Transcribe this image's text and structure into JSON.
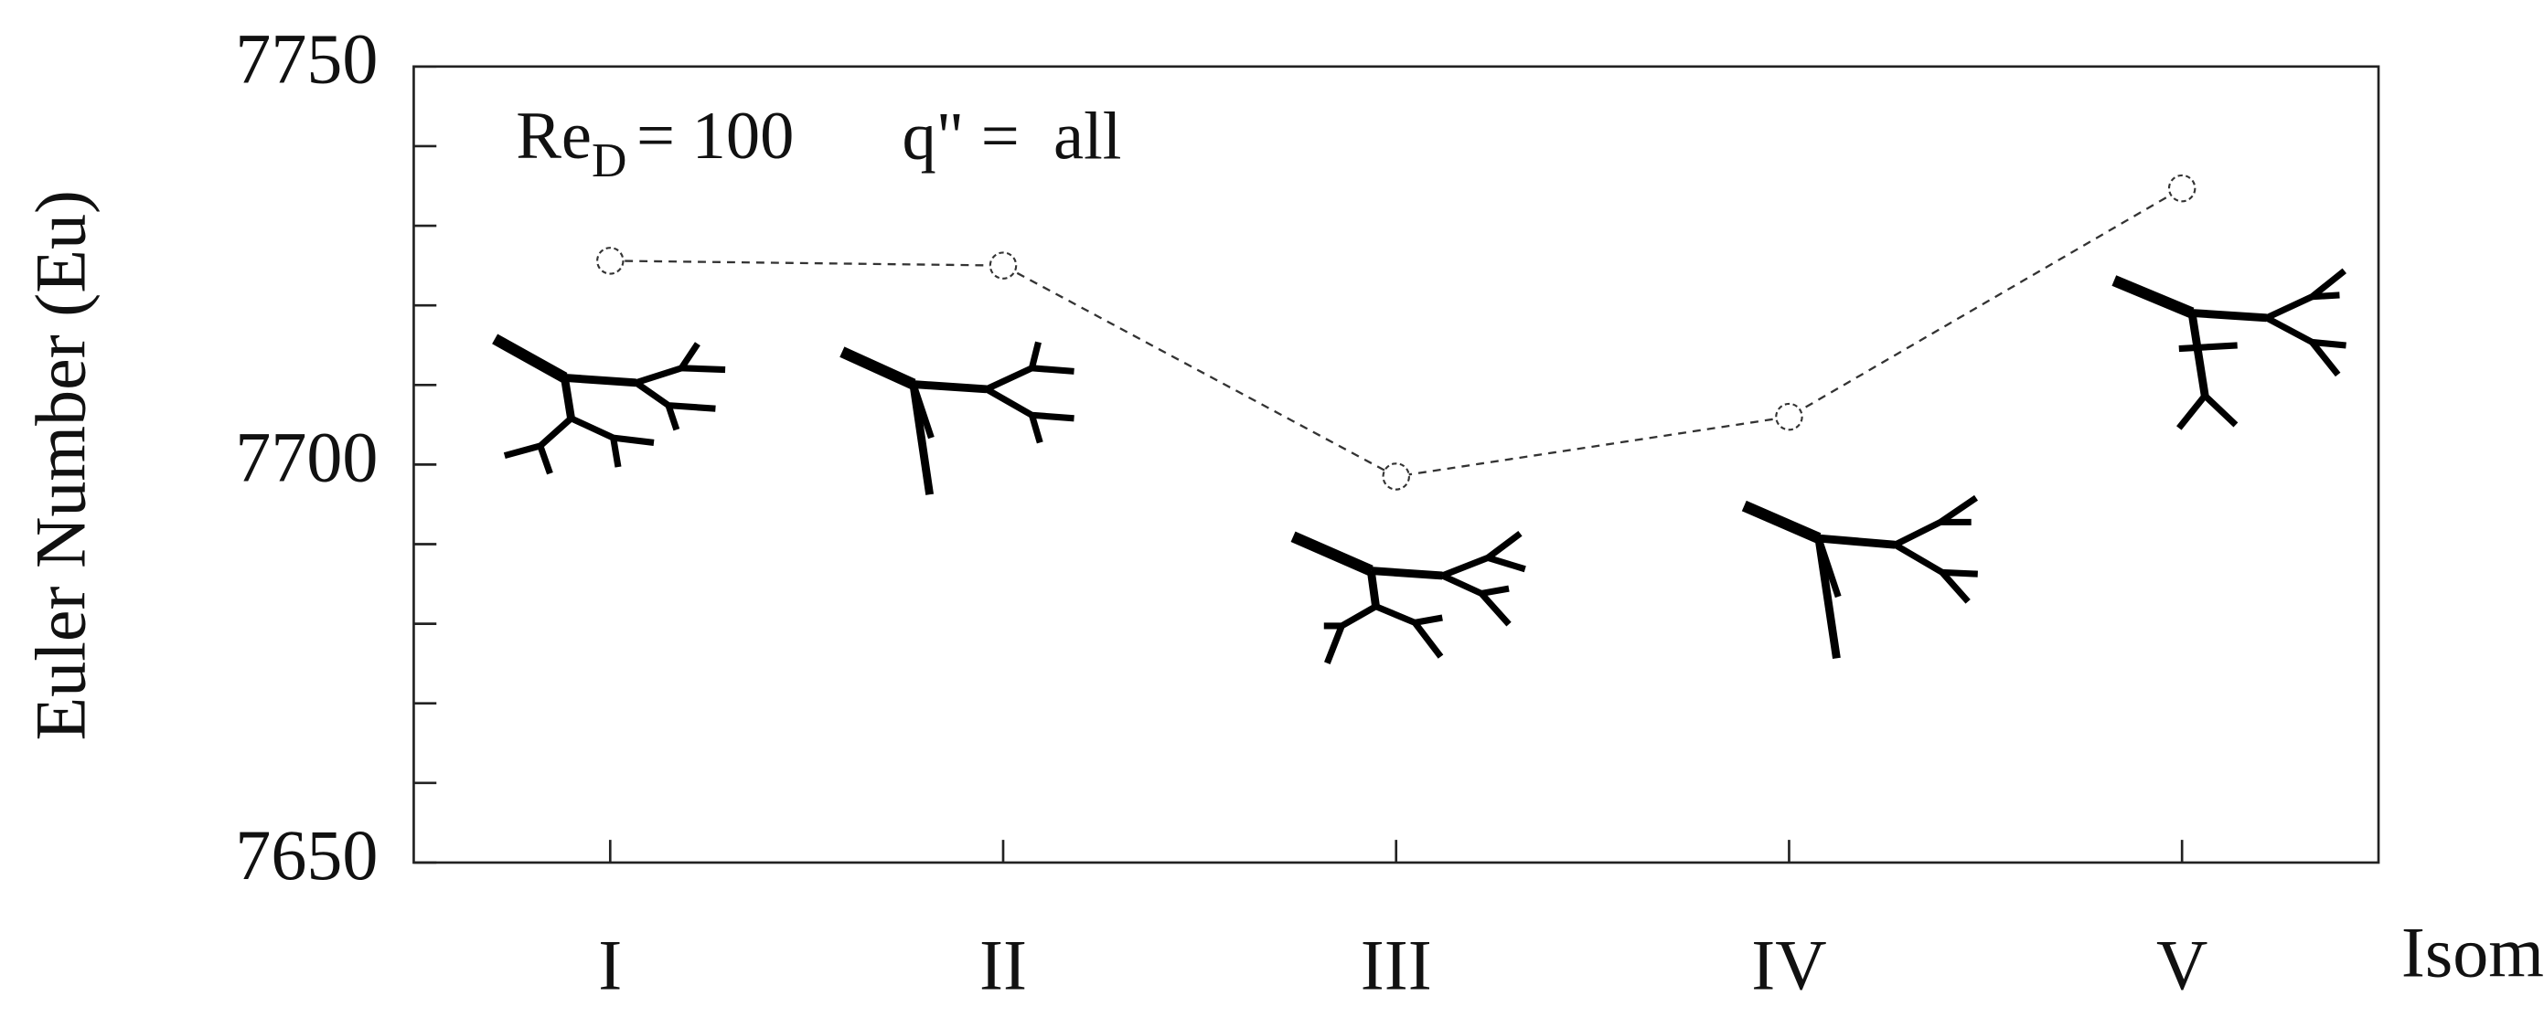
{
  "chart_data": {
    "type": "line",
    "y_label": "Euler Number (Eu)",
    "x_label": "Isomer",
    "annotation": {
      "main": "Re",
      "subscript": "D",
      "value": "= 100"
    },
    "annotation2": "q\" =  all",
    "categories": [
      "I",
      "II",
      "III",
      "IV",
      "V"
    ],
    "values": [
      7725.6,
      7725.0,
      7698.5,
      7706.0,
      7734.7
    ],
    "color": "#333333",
    "line_style": "dashed",
    "ylim": [
      7650,
      7750
    ],
    "yticks": [
      7650,
      7700,
      7750
    ],
    "yminorticks": [
      7660,
      7670,
      7680,
      7690,
      7710,
      7720,
      7730,
      7740
    ]
  }
}
